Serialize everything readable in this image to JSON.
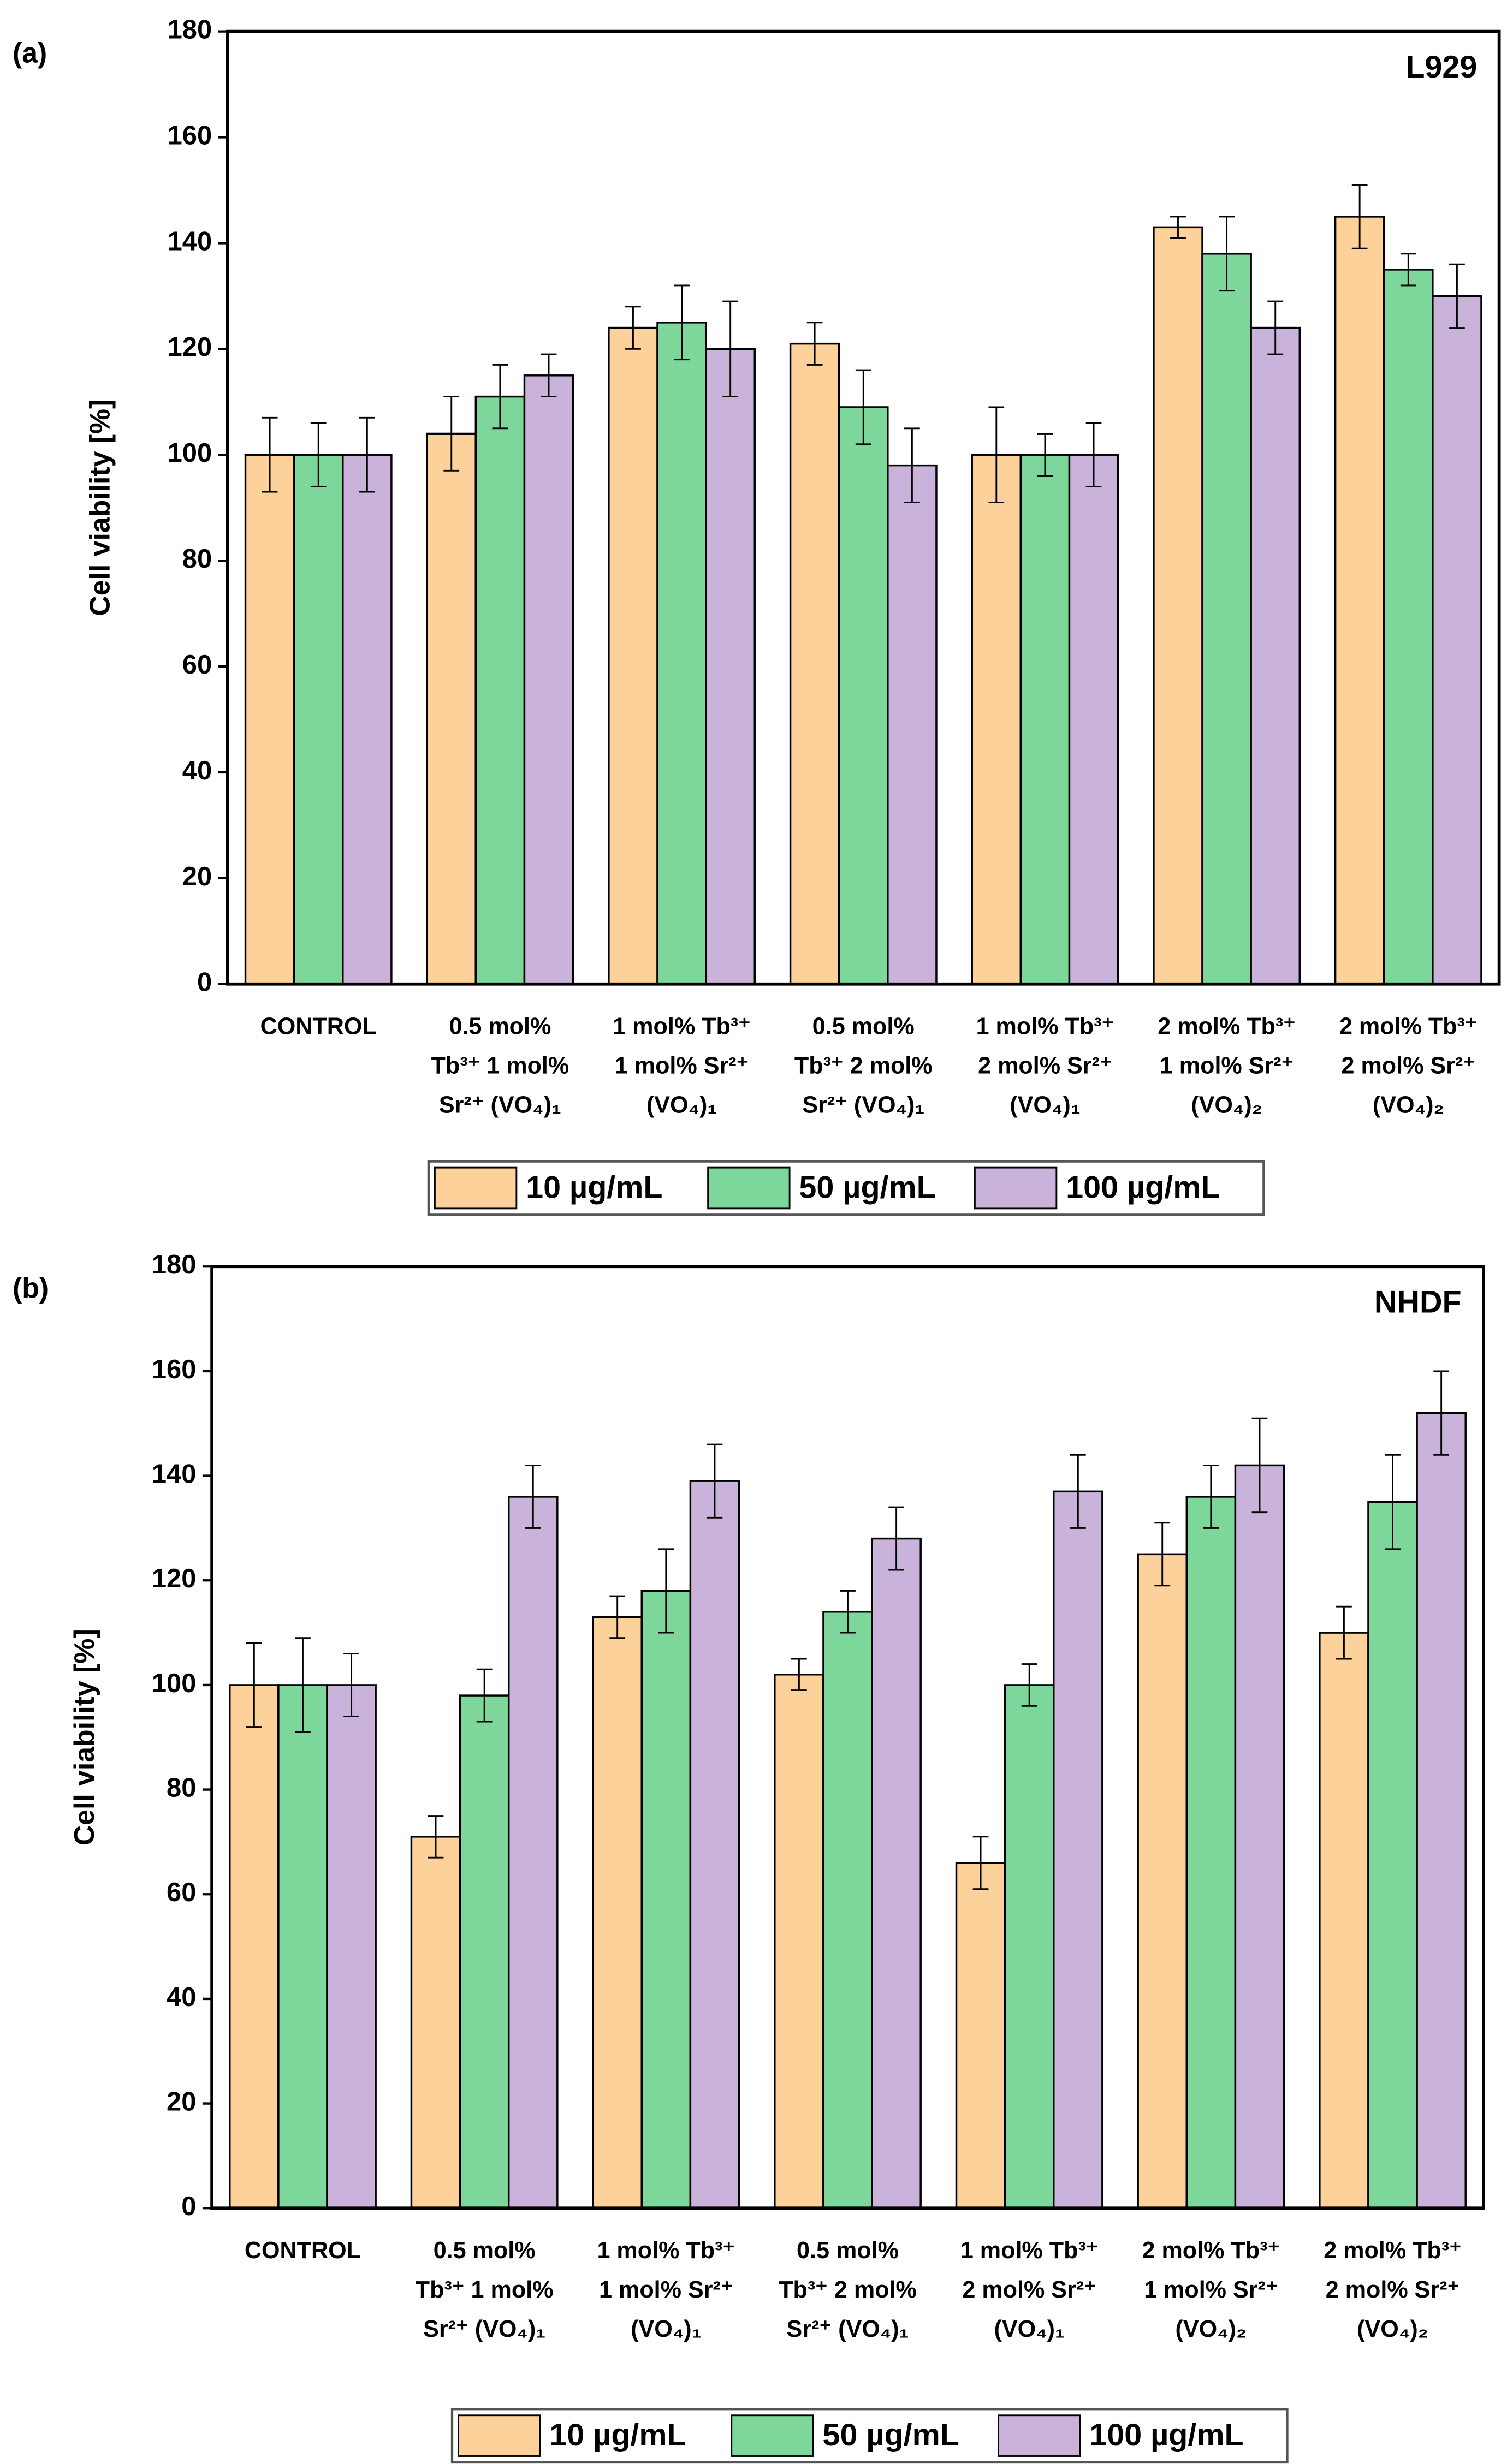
{
  "chart_data": [
    {
      "type": "bar",
      "panel_label": "(a)",
      "annotation": "L929",
      "ylabel": "Cell viability [%]",
      "categories": [
        [
          "CONTROL"
        ],
        [
          "0.5 mol%",
          "Tb³⁺ 1 mol%",
          "Sr²⁺ (VO₄)₁"
        ],
        [
          "1 mol% Tb³⁺",
          "1 mol% Sr²⁺",
          "(VO₄)₁"
        ],
        [
          "0.5 mol%",
          "Tb³⁺ 2 mol%",
          "Sr²⁺ (VO₄)₁"
        ],
        [
          "1 mol% Tb³⁺",
          "2 mol% Sr²⁺",
          "(VO₄)₁"
        ],
        [
          "2 mol% Tb³⁺",
          "1 mol% Sr²⁺",
          "(VO₄)₂"
        ],
        [
          "2 mol% Tb³⁺",
          "2 mol% Sr²⁺",
          "(VO₄)₂"
        ]
      ],
      "series": [
        {
          "name": "10 µg/mL",
          "color": "#fdd19a",
          "values": [
            100,
            104,
            124,
            121,
            100,
            143,
            145
          ],
          "errors": [
            7,
            7,
            4,
            4,
            9,
            2,
            6
          ]
        },
        {
          "name": "50 µg/mL",
          "color": "#7dd69a",
          "values": [
            100,
            111,
            125,
            109,
            100,
            138,
            135
          ],
          "errors": [
            6,
            6,
            7,
            7,
            4,
            7,
            3
          ]
        },
        {
          "name": "100 µg/mL",
          "color": "#c9b3db",
          "values": [
            100,
            115,
            120,
            98,
            100,
            124,
            130
          ],
          "errors": [
            7,
            4,
            9,
            7,
            6,
            5,
            6
          ]
        }
      ],
      "ylim": [
        0,
        180
      ],
      "yticks": [
        0,
        20,
        40,
        60,
        80,
        100,
        120,
        140,
        160,
        180
      ]
    },
    {
      "type": "bar",
      "panel_label": "(b)",
      "annotation": "NHDF",
      "ylabel": "Cell viability [%]",
      "categories": [
        [
          "CONTROL"
        ],
        [
          "0.5 mol%",
          "Tb³⁺ 1 mol%",
          "Sr²⁺ (VO₄)₁"
        ],
        [
          "1 mol% Tb³⁺",
          "1 mol% Sr²⁺",
          "(VO₄)₁"
        ],
        [
          "0.5 mol%",
          "Tb³⁺ 2 mol%",
          "Sr²⁺ (VO₄)₁"
        ],
        [
          "1 mol% Tb³⁺",
          "2 mol% Sr²⁺",
          "(VO₄)₁"
        ],
        [
          "2 mol% Tb³⁺",
          "1 mol% Sr²⁺",
          "(VO₄)₂"
        ],
        [
          "2 mol% Tb³⁺",
          "2 mol% Sr²⁺",
          "(VO₄)₂"
        ]
      ],
      "series": [
        {
          "name": "10 µg/mL",
          "color": "#fdd19a",
          "values": [
            100,
            71,
            113,
            102,
            66,
            125,
            110
          ],
          "errors": [
            8,
            4,
            4,
            3,
            5,
            6,
            5
          ]
        },
        {
          "name": "50 µg/mL",
          "color": "#7dd69a",
          "values": [
            100,
            98,
            118,
            114,
            100,
            136,
            135
          ],
          "errors": [
            9,
            5,
            8,
            4,
            4,
            6,
            9
          ]
        },
        {
          "name": "100 µg/mL",
          "color": "#c9b3db",
          "values": [
            100,
            136,
            139,
            128,
            137,
            142,
            152
          ],
          "errors": [
            6,
            6,
            7,
            6,
            7,
            9,
            8
          ]
        }
      ],
      "ylim": [
        0,
        180
      ],
      "yticks": [
        0,
        20,
        40,
        60,
        80,
        100,
        120,
        140,
        160,
        180
      ]
    }
  ]
}
